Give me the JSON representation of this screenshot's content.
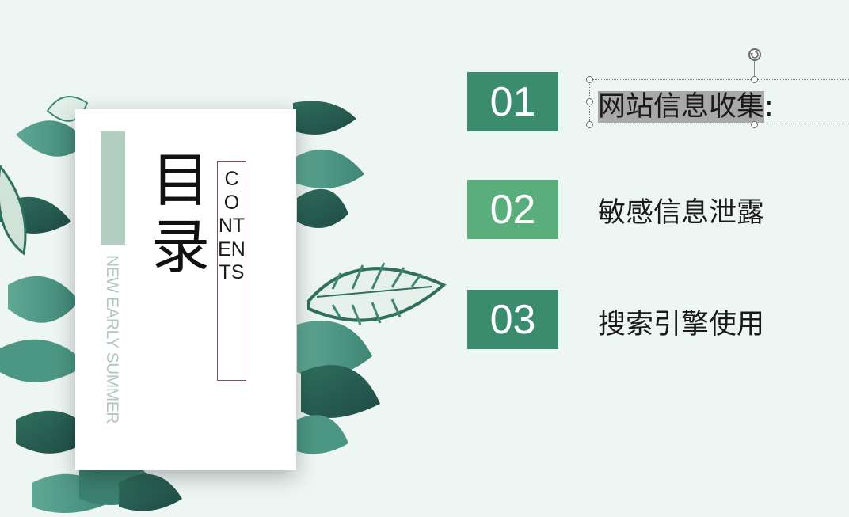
{
  "colors": {
    "background": "#eef6f4",
    "item_dark": "#3b8c6e",
    "item_light": "#5aae7b",
    "card_bar": "#b2cfc2",
    "contents_border": "#8e4c60"
  },
  "card": {
    "title": "目录",
    "contents": "CONTENTS",
    "subtitle": "NEW EARLY SUMMER"
  },
  "items": [
    {
      "number": "01",
      "text": "网站信息收集",
      "suffix": ":"
    },
    {
      "number": "02",
      "text": "敏感信息泄露"
    },
    {
      "number": "03",
      "text": "搜索引擎使用"
    }
  ],
  "selection": {
    "rotate_icon": "rotate-handle-icon"
  }
}
